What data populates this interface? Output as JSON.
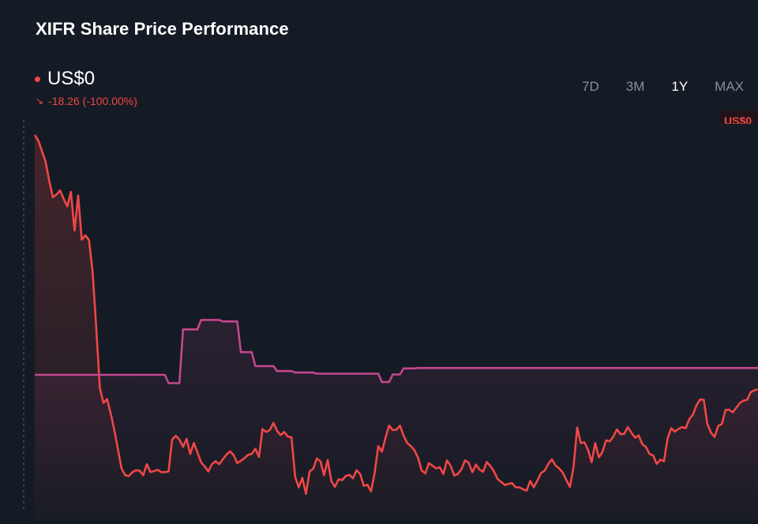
{
  "header": {
    "title": "XIFR Share Price Performance",
    "price": "US$0",
    "change": "-18.26 (-100.00%)",
    "price_tag": "US$0"
  },
  "ranges": [
    {
      "label": "7D",
      "active": false
    },
    {
      "label": "3M",
      "active": false
    },
    {
      "label": "1Y",
      "active": true
    },
    {
      "label": "MAX",
      "active": false
    }
  ],
  "colors": {
    "background": "#151b24",
    "price_line": "#f04747",
    "benchmark_line": "#c4468f",
    "accent_down": "#f04747"
  },
  "chart_data": {
    "type": "line",
    "title": "XIFR Share Price Performance",
    "xlabel": "",
    "ylabel": "",
    "grid": false,
    "legend": "none",
    "x_index_range": [
      0,
      200
    ],
    "y_index_range": [
      0,
      100
    ],
    "series": [
      {
        "points": [
          [
            0,
            95.6
          ],
          [
            1,
            94.1
          ],
          [
            3,
            88.6
          ],
          [
            4,
            83.6
          ],
          [
            5,
            79.2
          ],
          [
            6,
            79.9
          ],
          [
            7,
            81.0
          ],
          [
            8,
            78.8
          ],
          [
            9,
            76.8
          ],
          [
            10,
            80.6
          ],
          [
            11,
            70.4
          ],
          [
            12,
            79.6
          ],
          [
            13,
            68.0
          ],
          [
            14,
            69.1
          ],
          [
            15,
            67.9
          ],
          [
            16,
            59.5
          ],
          [
            17,
            44.7
          ],
          [
            18,
            28.9
          ],
          [
            19,
            24.9
          ],
          [
            20,
            25.9
          ],
          [
            21,
            22.1
          ],
          [
            22,
            17.7
          ],
          [
            23,
            12.7
          ],
          [
            24,
            7.6
          ],
          [
            25,
            5.8
          ],
          [
            26,
            5.6
          ],
          [
            27,
            6.6
          ],
          [
            28,
            7.1
          ],
          [
            29,
            7.0
          ],
          [
            30,
            5.8
          ],
          [
            31,
            8.7
          ],
          [
            32,
            6.6
          ],
          [
            33,
            6.9
          ],
          [
            34,
            7.2
          ],
          [
            35,
            6.6
          ],
          [
            36,
            6.6
          ],
          [
            37,
            6.8
          ],
          [
            38,
            15.2
          ],
          [
            39,
            16.2
          ],
          [
            40,
            15.2
          ],
          [
            41,
            13.3
          ],
          [
            42,
            15.4
          ],
          [
            43,
            11.4
          ],
          [
            44,
            14.3
          ],
          [
            45,
            11.8
          ],
          [
            46,
            9.2
          ],
          [
            47,
            8.1
          ],
          [
            48,
            6.8
          ],
          [
            49,
            8.7
          ],
          [
            50,
            9.5
          ],
          [
            51,
            8.7
          ],
          [
            52,
            10.0
          ],
          [
            53,
            11.2
          ],
          [
            54,
            12.1
          ],
          [
            55,
            11.1
          ],
          [
            56,
            9.0
          ],
          [
            57,
            9.6
          ],
          [
            58,
            10.3
          ],
          [
            59,
            11.2
          ],
          [
            60,
            11.4
          ],
          [
            61,
            12.8
          ],
          [
            62,
            10.6
          ],
          [
            63,
            18.0
          ],
          [
            64,
            17.2
          ],
          [
            65,
            17.7
          ],
          [
            66,
            19.6
          ],
          [
            67,
            17.5
          ],
          [
            68,
            16.4
          ],
          [
            69,
            17.2
          ],
          [
            70,
            16.0
          ],
          [
            71,
            15.8
          ],
          [
            72,
            5.4
          ],
          [
            73,
            2.6
          ],
          [
            74,
            5.1
          ],
          [
            75,
            0.9
          ],
          [
            76,
            6.8
          ],
          [
            77,
            7.5
          ],
          [
            78,
            10.2
          ],
          [
            79,
            9.5
          ],
          [
            80,
            5.8
          ],
          [
            81,
            9.8
          ],
          [
            82,
            4.3
          ],
          [
            83,
            2.7
          ],
          [
            84,
            4.7
          ],
          [
            85,
            4.5
          ],
          [
            86,
            5.6
          ],
          [
            87,
            5.9
          ],
          [
            88,
            5.0
          ],
          [
            89,
            7.1
          ],
          [
            90,
            6.1
          ],
          [
            91,
            3.0
          ],
          [
            92,
            3.3
          ],
          [
            93,
            1.5
          ],
          [
            94,
            6.4
          ],
          [
            95,
            13.5
          ],
          [
            96,
            12.0
          ],
          [
            97,
            15.7
          ],
          [
            98,
            18.9
          ],
          [
            99,
            17.7
          ],
          [
            100,
            17.8
          ],
          [
            101,
            18.9
          ],
          [
            102,
            16.2
          ],
          [
            103,
            14.3
          ],
          [
            104,
            13.5
          ],
          [
            105,
            12.4
          ],
          [
            106,
            10.4
          ],
          [
            107,
            7.0
          ],
          [
            108,
            6.3
          ],
          [
            109,
            9.0
          ],
          [
            110,
            8.3
          ],
          [
            111,
            7.6
          ],
          [
            112,
            7.9
          ],
          [
            113,
            6.1
          ],
          [
            114,
            9.7
          ],
          [
            115,
            8.3
          ],
          [
            116,
            5.7
          ],
          [
            117,
            6.1
          ],
          [
            118,
            7.4
          ],
          [
            119,
            9.7
          ],
          [
            120,
            9.1
          ],
          [
            121,
            6.6
          ],
          [
            122,
            8.6
          ],
          [
            123,
            7.3
          ],
          [
            124,
            6.7
          ],
          [
            125,
            9.3
          ],
          [
            126,
            8.2
          ],
          [
            127,
            6.8
          ],
          [
            128,
            4.8
          ],
          [
            129,
            4.0
          ],
          [
            130,
            3.2
          ],
          [
            131,
            3.5
          ],
          [
            132,
            3.7
          ],
          [
            133,
            2.6
          ],
          [
            134,
            2.6
          ],
          [
            135,
            2.1
          ],
          [
            136,
            1.7
          ],
          [
            137,
            4.3
          ],
          [
            138,
            2.6
          ],
          [
            139,
            4.4
          ],
          [
            140,
            6.4
          ],
          [
            141,
            7.0
          ],
          [
            142,
            8.8
          ],
          [
            143,
            10.0
          ],
          [
            144,
            8.4
          ],
          [
            145,
            7.6
          ],
          [
            146,
            6.5
          ],
          [
            147,
            4.5
          ],
          [
            148,
            2.7
          ],
          [
            149,
            8.0
          ],
          [
            150,
            18.4
          ],
          [
            151,
            14.3
          ],
          [
            152,
            14.5
          ],
          [
            153,
            12.5
          ],
          [
            154,
            9.2
          ],
          [
            155,
            14.3
          ],
          [
            156,
            10.5
          ],
          [
            157,
            12.0
          ],
          [
            158,
            15.0
          ],
          [
            159,
            14.7
          ],
          [
            160,
            16.0
          ],
          [
            161,
            17.9
          ],
          [
            162,
            16.6
          ],
          [
            163,
            16.7
          ],
          [
            164,
            18.5
          ],
          [
            165,
            17.0
          ],
          [
            166,
            15.7
          ],
          [
            167,
            16.3
          ],
          [
            168,
            14.0
          ],
          [
            169,
            13.3
          ],
          [
            170,
            11.4
          ],
          [
            171,
            11.0
          ],
          [
            172,
            8.8
          ],
          [
            173,
            9.9
          ],
          [
            174,
            9.5
          ],
          [
            175,
            15.5
          ],
          [
            176,
            18.2
          ],
          [
            177,
            17.3
          ],
          [
            178,
            18.0
          ],
          [
            179,
            18.5
          ],
          [
            180,
            18.2
          ],
          [
            181,
            20.6
          ],
          [
            182,
            21.8
          ],
          [
            183,
            24.3
          ],
          [
            184,
            25.8
          ],
          [
            185,
            25.7
          ],
          [
            186,
            19.3
          ],
          [
            187,
            17.0
          ],
          [
            188,
            15.9
          ],
          [
            189,
            18.8
          ],
          [
            190,
            19.3
          ],
          [
            191,
            23.0
          ],
          [
            192,
            23.1
          ],
          [
            193,
            22.4
          ],
          [
            194,
            23.6
          ],
          [
            195,
            24.9
          ],
          [
            196,
            25.5
          ],
          [
            197,
            25.7
          ],
          [
            198,
            27.7
          ],
          [
            199,
            28.2
          ],
          [
            200,
            28.5
          ]
        ]
      },
      {
        "points": [
          [
            0,
            32.3
          ],
          [
            30,
            32.3
          ],
          [
            36,
            32.3
          ],
          [
            37,
            30.1
          ],
          [
            40,
            30.1
          ],
          [
            41,
            44.3
          ],
          [
            45,
            44.3
          ],
          [
            46,
            46.8
          ],
          [
            51,
            46.8
          ],
          [
            52,
            46.4
          ],
          [
            56,
            46.4
          ],
          [
            57,
            38.3
          ],
          [
            60,
            38.3
          ],
          [
            61,
            34.6
          ],
          [
            66,
            34.6
          ],
          [
            67,
            33.3
          ],
          [
            71,
            33.3
          ],
          [
            72,
            32.9
          ],
          [
            77,
            32.9
          ],
          [
            78,
            32.6
          ],
          [
            95,
            32.6
          ],
          [
            96,
            30.4
          ],
          [
            98,
            30.4
          ],
          [
            99,
            32.4
          ],
          [
            101,
            32.4
          ],
          [
            102,
            34.0
          ],
          [
            105,
            34.0
          ],
          [
            106,
            34.1
          ],
          [
            200,
            34.1
          ]
        ]
      }
    ]
  }
}
